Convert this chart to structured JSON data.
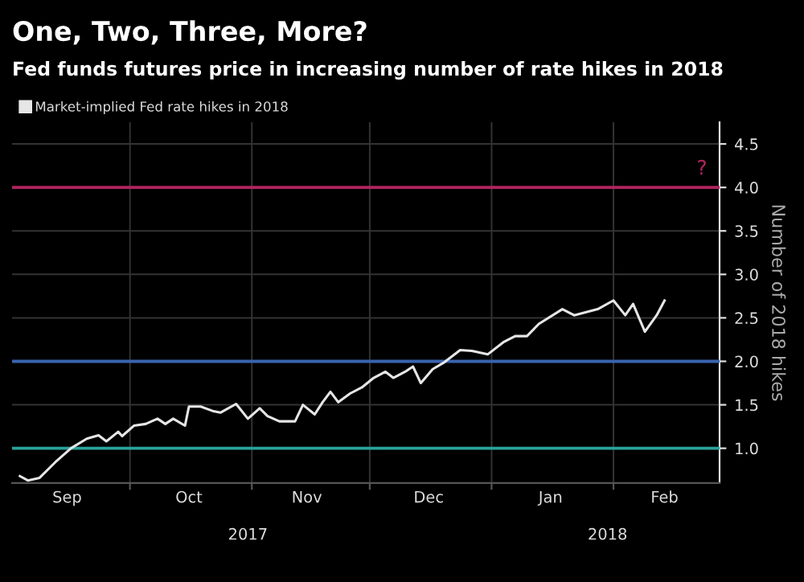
{
  "chart_data": {
    "type": "line",
    "title": "One, Two, Three, More?",
    "subtitle": "Fed funds futures price in increasing number of rate hikes in 2018",
    "ylabel": "Number of 2018 hikes",
    "legend": "top left",
    "grid": true,
    "line_style": "solid",
    "marker": "none",
    "x": [
      "2017-09-03",
      "2017-09-05",
      "2017-09-08",
      "2017-09-12",
      "2017-09-16",
      "2017-09-20",
      "2017-09-23",
      "2017-09-25",
      "2017-09-28",
      "2017-09-29",
      "2017-10-02",
      "2017-10-05",
      "2017-10-08",
      "2017-10-10",
      "2017-10-12",
      "2017-10-15",
      "2017-10-16",
      "2017-10-19",
      "2017-10-22",
      "2017-10-24",
      "2017-10-28",
      "2017-10-31",
      "2017-11-03",
      "2017-11-05",
      "2017-11-08",
      "2017-11-12",
      "2017-11-14",
      "2017-11-17",
      "2017-11-19",
      "2017-11-21",
      "2017-11-23",
      "2017-11-26",
      "2017-11-29",
      "2017-12-02",
      "2017-12-05",
      "2017-12-07",
      "2017-12-10",
      "2017-12-12",
      "2017-12-14",
      "2017-12-17",
      "2017-12-20",
      "2017-12-24",
      "2017-12-27",
      "2017-12-31",
      "2018-01-04",
      "2018-01-07",
      "2018-01-10",
      "2018-01-13",
      "2018-01-19",
      "2018-01-22",
      "2018-01-28",
      "2018-02-01",
      "2018-02-04",
      "2018-02-06",
      "2018-02-09",
      "2018-02-12",
      "2018-02-14"
    ],
    "series": [
      {
        "name": "Market-implied Fed rate hikes in 2018",
        "color": "#e6e6e6",
        "values": [
          0.68,
          0.63,
          0.66,
          0.84,
          1.0,
          1.11,
          1.15,
          1.08,
          1.19,
          1.14,
          1.26,
          1.28,
          1.34,
          1.28,
          1.34,
          1.26,
          1.48,
          1.48,
          1.43,
          1.41,
          1.51,
          1.34,
          1.46,
          1.37,
          1.31,
          1.31,
          1.5,
          1.39,
          1.53,
          1.65,
          1.53,
          1.63,
          1.7,
          1.81,
          1.88,
          1.81,
          1.88,
          1.94,
          1.75,
          1.91,
          1.99,
          2.13,
          2.12,
          2.08,
          2.22,
          2.29,
          2.29,
          2.43,
          2.6,
          2.53,
          2.6,
          2.7,
          2.53,
          2.66,
          2.34,
          2.53,
          2.7
        ]
      }
    ],
    "xlim": [
      "2017-09-01",
      "2018-02-28"
    ],
    "xticks": [
      {
        "value": "2017-10-01",
        "label": null
      },
      {
        "value": "2017-11-01",
        "label": null
      },
      {
        "value": "2017-12-01",
        "label": null
      },
      {
        "value": "2018-01-01",
        "label": null
      },
      {
        "value": "2018-02-01",
        "label": null
      },
      {
        "value": "2017-09-15",
        "label": "Sep"
      },
      {
        "value": "2017-10-16",
        "label": "Oct"
      },
      {
        "value": "2017-11-15",
        "label": "Nov"
      },
      {
        "value": "2017-12-16",
        "label": "Dec"
      },
      {
        "value": "2018-01-16",
        "label": "Jan"
      },
      {
        "value": "2018-02-14",
        "label": "Feb"
      }
    ],
    "ylim": [
      0.6,
      4.75
    ],
    "yticks": [
      {
        "value": 1,
        "label": "1.0"
      },
      {
        "value": 1.5,
        "label": "1.5"
      },
      {
        "value": 2,
        "label": "2.0"
      },
      {
        "value": 2.5,
        "label": "2.5"
      },
      {
        "value": 3,
        "label": "3.0"
      },
      {
        "value": 3.5,
        "label": "3.5"
      },
      {
        "value": 4,
        "label": "4.0"
      },
      {
        "value": 4.5,
        "label": "4.5"
      }
    ],
    "ref_lines": [
      {
        "axis": "y",
        "value": 4,
        "color": "#b0245e"
      },
      {
        "axis": "y",
        "value": 2,
        "color": "#3a64b0"
      },
      {
        "axis": "y",
        "value": 1,
        "color": "#2aa39a"
      }
    ],
    "annotations": [
      "2017",
      "2018",
      "?"
    ]
  }
}
